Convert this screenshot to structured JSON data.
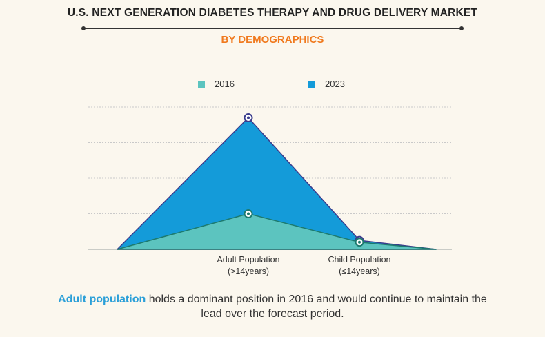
{
  "header": {
    "title": "U.S. NEXT GENERATION DIABETES THERAPY AND DRUG DELIVERY MARKET",
    "subtitle": "BY DEMOGRAPHICS"
  },
  "caption": {
    "highlight": "Adult population",
    "rest_line1": " holds a dominant position in 2016 and would continue to maintain the",
    "rest_line2": "lead over the forecast period."
  },
  "colors": {
    "series_2016": "#5cc4bf",
    "series_2016_line": "#1d7a6e",
    "series_2023": "#149bd9",
    "series_2023_line": "#3a3c8c",
    "accent_orange": "#f07a1f",
    "highlight_blue": "#2a9fd8"
  },
  "chart_data": {
    "type": "area",
    "title": "U.S. NEXT GENERATION DIABETES THERAPY AND DRUG DELIVERY MARKET",
    "subtitle": "BY DEMOGRAPHICS",
    "categories": [
      {
        "line1": "Adult Population",
        "line2": "(>14years)"
      },
      {
        "line1": "Child Population",
        "line2": "(≤14years)"
      }
    ],
    "series": [
      {
        "name": "2016",
        "values": [
          1.0,
          0.2
        ]
      },
      {
        "name": "2023",
        "values": [
          3.7,
          0.25
        ]
      }
    ],
    "ylim": [
      0,
      4
    ],
    "y_ticks_labeled": false,
    "grid": true,
    "legend": "top-center"
  }
}
